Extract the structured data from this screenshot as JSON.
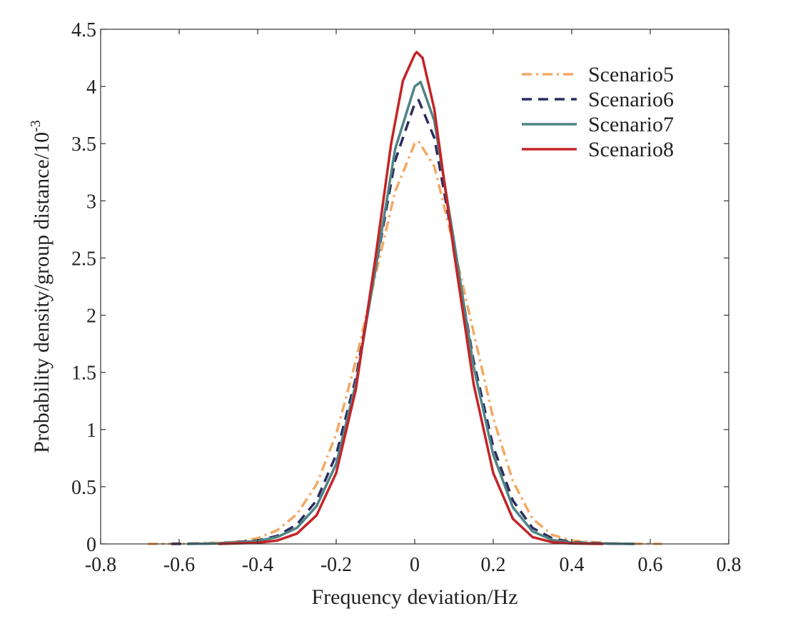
{
  "chart_data": {
    "type": "line",
    "xlabel": "Frequency deviation/Hz",
    "ylabel": "Probability density/group distance/10",
    "ylabel_exponent": "-3",
    "xlim": [
      -0.8,
      0.8
    ],
    "ylim": [
      0,
      4.5
    ],
    "x_ticks": [
      -0.8,
      -0.6,
      -0.4,
      -0.2,
      0,
      0.2,
      0.4,
      0.6,
      0.8
    ],
    "x_tick_labels": [
      "-0.8",
      "-0.6",
      "-0.4",
      "-0.2",
      "0",
      "0.2",
      "0.4",
      "0.6",
      "0.8"
    ],
    "y_ticks": [
      0,
      0.5,
      1,
      1.5,
      2,
      2.5,
      3,
      3.5,
      4,
      4.5
    ],
    "y_tick_labels": [
      "0",
      "0.5",
      "1",
      "1.5",
      "2",
      "2.5",
      "3",
      "3.5",
      "4",
      "4.5"
    ],
    "grid": false,
    "legend_position": "top-right",
    "series": [
      {
        "name": "Scenario5",
        "color": "#f4a862",
        "dash": "dash-dot",
        "x": [
          -0.68,
          -0.6,
          -0.5,
          -0.45,
          -0.4,
          -0.35,
          -0.3,
          -0.25,
          -0.2,
          -0.15,
          -0.1,
          -0.05,
          0,
          0.01,
          0.05,
          0.1,
          0.15,
          0.2,
          0.25,
          0.3,
          0.35,
          0.4,
          0.5,
          0.63
        ],
        "y": [
          0,
          0.002,
          0.01,
          0.02,
          0.05,
          0.12,
          0.26,
          0.52,
          0.96,
          1.6,
          2.35,
          3.08,
          3.5,
          3.52,
          3.3,
          2.6,
          1.85,
          1.1,
          0.55,
          0.22,
          0.08,
          0.03,
          0.005,
          0
        ]
      },
      {
        "name": "Scenario6",
        "color": "#2b2d5e",
        "dash": "dash",
        "x": [
          -0.62,
          -0.5,
          -0.4,
          -0.35,
          -0.3,
          -0.25,
          -0.2,
          -0.15,
          -0.1,
          -0.05,
          0,
          0.01,
          0.05,
          0.1,
          0.15,
          0.2,
          0.25,
          0.3,
          0.35,
          0.4,
          0.5,
          0.56
        ],
        "y": [
          0,
          0.005,
          0.03,
          0.07,
          0.17,
          0.38,
          0.78,
          1.45,
          2.4,
          3.35,
          3.85,
          3.88,
          3.55,
          2.6,
          1.6,
          0.85,
          0.38,
          0.14,
          0.05,
          0.015,
          0.003,
          0
        ]
      },
      {
        "name": "Scenario7",
        "color": "#4e8486",
        "dash": "solid",
        "x": [
          -0.58,
          -0.5,
          -0.4,
          -0.35,
          -0.3,
          -0.25,
          -0.2,
          -0.15,
          -0.1,
          -0.05,
          0,
          0.015,
          0.05,
          0.1,
          0.15,
          0.2,
          0.25,
          0.3,
          0.35,
          0.4,
          0.5,
          0.56
        ],
        "y": [
          0,
          0.004,
          0.025,
          0.06,
          0.14,
          0.33,
          0.7,
          1.4,
          2.4,
          3.45,
          4.0,
          4.04,
          3.7,
          2.65,
          1.55,
          0.78,
          0.32,
          0.11,
          0.035,
          0.01,
          0.002,
          0
        ]
      },
      {
        "name": "Scenario8",
        "color": "#c42426",
        "dash": "solid",
        "x": [
          -0.5,
          -0.4,
          -0.35,
          -0.3,
          -0.25,
          -0.2,
          -0.15,
          -0.1,
          -0.06,
          -0.03,
          0,
          0.005,
          0.02,
          0.05,
          0.1,
          0.15,
          0.2,
          0.25,
          0.3,
          0.35,
          0.4,
          0.48
        ],
        "y": [
          0,
          0.01,
          0.03,
          0.09,
          0.25,
          0.62,
          1.35,
          2.5,
          3.5,
          4.05,
          4.28,
          4.3,
          4.25,
          3.8,
          2.55,
          1.4,
          0.62,
          0.22,
          0.06,
          0.015,
          0.004,
          0
        ]
      }
    ]
  }
}
